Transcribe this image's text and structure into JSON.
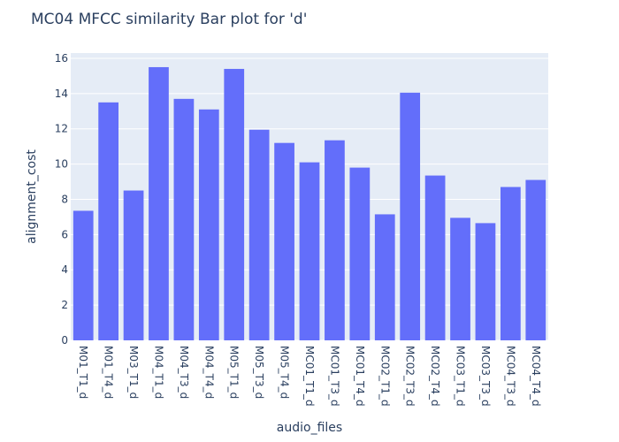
{
  "chart_data": {
    "type": "bar",
    "title": "MC04 MFCC similarity Bar plot for 'd'",
    "xlabel": "audio_files",
    "ylabel": "alignment_cost",
    "categories": [
      "M01_T1_d",
      "M01_T4_d",
      "M03_T1_d",
      "M04_T1_d",
      "M04_T3_d",
      "M04_T4_d",
      "M05_T1_d",
      "M05_T3_d",
      "M05_T4_d",
      "MC01_T1_d",
      "MC01_T3_d",
      "MC01_T4_d",
      "MC02_T1_d",
      "MC02_T3_d",
      "MC02_T4_d",
      "MC03_T1_d",
      "MC03_T3_d",
      "MC04_T3_d",
      "MC04_T4_d"
    ],
    "values": [
      7.35,
      13.5,
      8.5,
      15.5,
      13.7,
      13.1,
      15.4,
      11.95,
      11.2,
      10.1,
      11.35,
      9.8,
      7.15,
      14.05,
      9.35,
      6.95,
      6.65,
      8.7,
      9.1
    ],
    "ylim": [
      0,
      16.3
    ],
    "yticks": [
      0,
      2,
      4,
      6,
      8,
      10,
      12,
      14,
      16
    ],
    "grid": true,
    "colors": {
      "bar": "#636efa",
      "plot_bg": "#e5ecf6",
      "grid": "#ffffff",
      "text": "#2a3f5f"
    }
  }
}
